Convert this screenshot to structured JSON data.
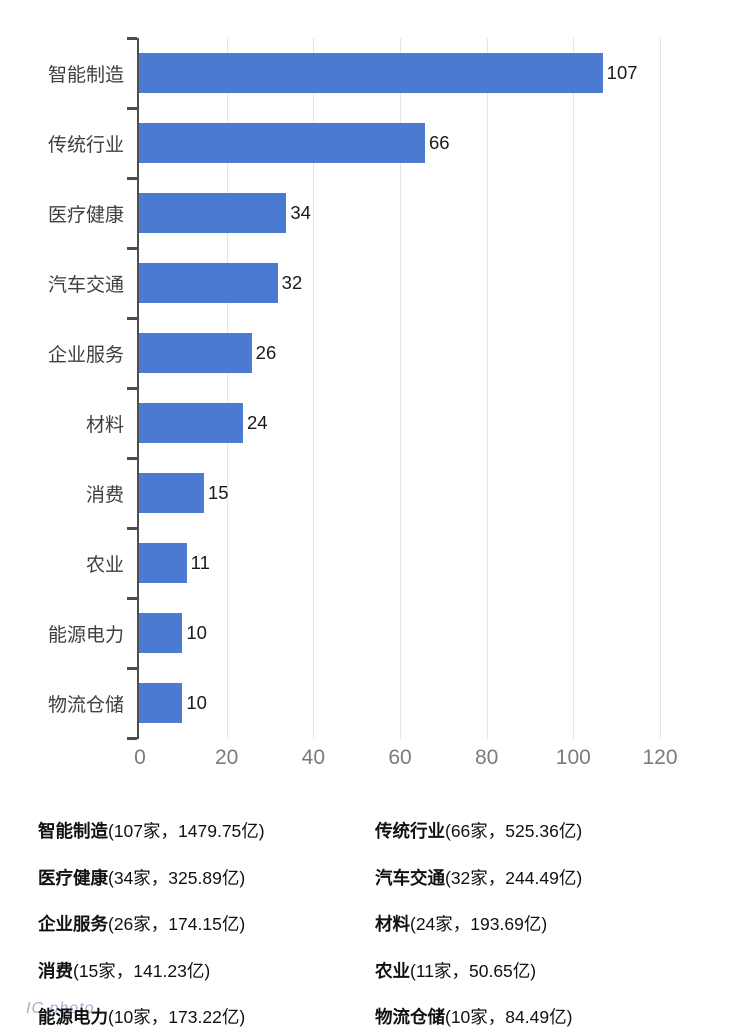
{
  "chart_data": {
    "type": "bar",
    "orientation": "horizontal",
    "title": "",
    "xlabel": "",
    "ylabel": "",
    "categories": [
      "智能制造",
      "传统行业",
      "医疗健康",
      "汽车交通",
      "企业服务",
      "材料",
      "消费",
      "农业",
      "能源电力",
      "物流仓储"
    ],
    "values": [
      107,
      66,
      34,
      32,
      26,
      24,
      15,
      11,
      10,
      10
    ],
    "value_labels": [
      "107",
      "66",
      "34",
      "32",
      "26",
      "24",
      "15",
      "11",
      "10",
      "10"
    ],
    "xlim": [
      0,
      120
    ],
    "x_ticks": [
      0,
      20,
      40,
      60,
      80,
      100,
      120
    ],
    "grid": true,
    "legend_position": "none",
    "bar_color": "#4a7ad2"
  },
  "summary_items": [
    {
      "name": "智能制造",
      "detail": "(107家，1479.75亿)"
    },
    {
      "name": "传统行业",
      "detail": "(66家，525.36亿)"
    },
    {
      "name": "医疗健康",
      "detail": "(34家，325.89亿)"
    },
    {
      "name": "汽车交通",
      "detail": "(32家，244.49亿)"
    },
    {
      "name": "企业服务",
      "detail": "(26家，174.15亿)"
    },
    {
      "name": "材料",
      "detail": "(24家，193.69亿)"
    },
    {
      "name": "消费",
      "detail": "(15家，141.23亿)"
    },
    {
      "name": "农业",
      "detail": "(11家，50.65亿)"
    },
    {
      "name": "能源电力",
      "detail": "(10家，173.22亿)"
    },
    {
      "name": "物流仓储",
      "detail": "(10家，84.49亿)"
    }
  ],
  "watermark": {
    "text": "IC photo"
  },
  "colors": {
    "bar": "#4a7ad2",
    "axis": "#4d4d4d",
    "grid": "#e4e4e4",
    "tick_label": "#7b7b7b",
    "category_label": "#3c4043",
    "value_label": "#1a1a1a",
    "legend_text": "#111111"
  }
}
